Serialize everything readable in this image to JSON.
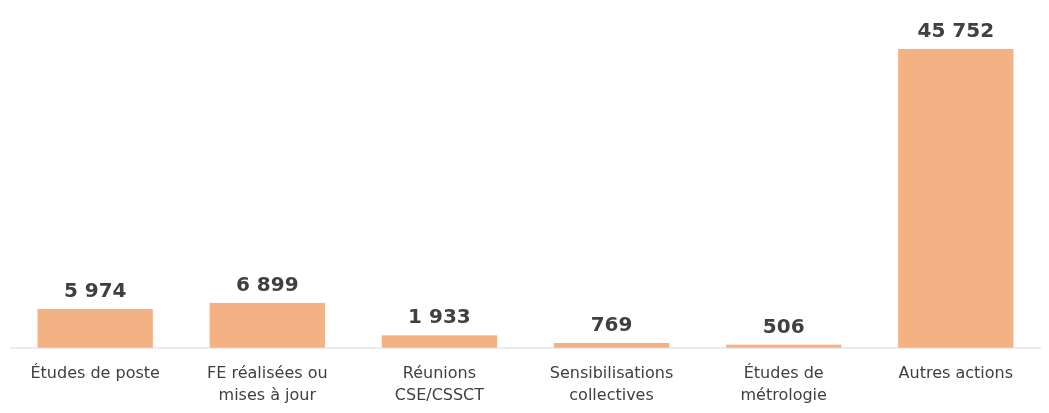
{
  "chart_data": {
    "type": "bar",
    "categories": [
      "Études de poste",
      "FE réalisées ou mises à jour",
      "Réunions CSE/CSSCT",
      "Sensibilisations collectives",
      "Études de métrologie",
      "Autres actions"
    ],
    "values": [
      5974,
      6899,
      1933,
      769,
      506,
      45752
    ],
    "value_labels": [
      "5 974",
      "6 899",
      "1 933",
      "769",
      "506",
      "45 752"
    ],
    "color": "#f4b183"
  }
}
